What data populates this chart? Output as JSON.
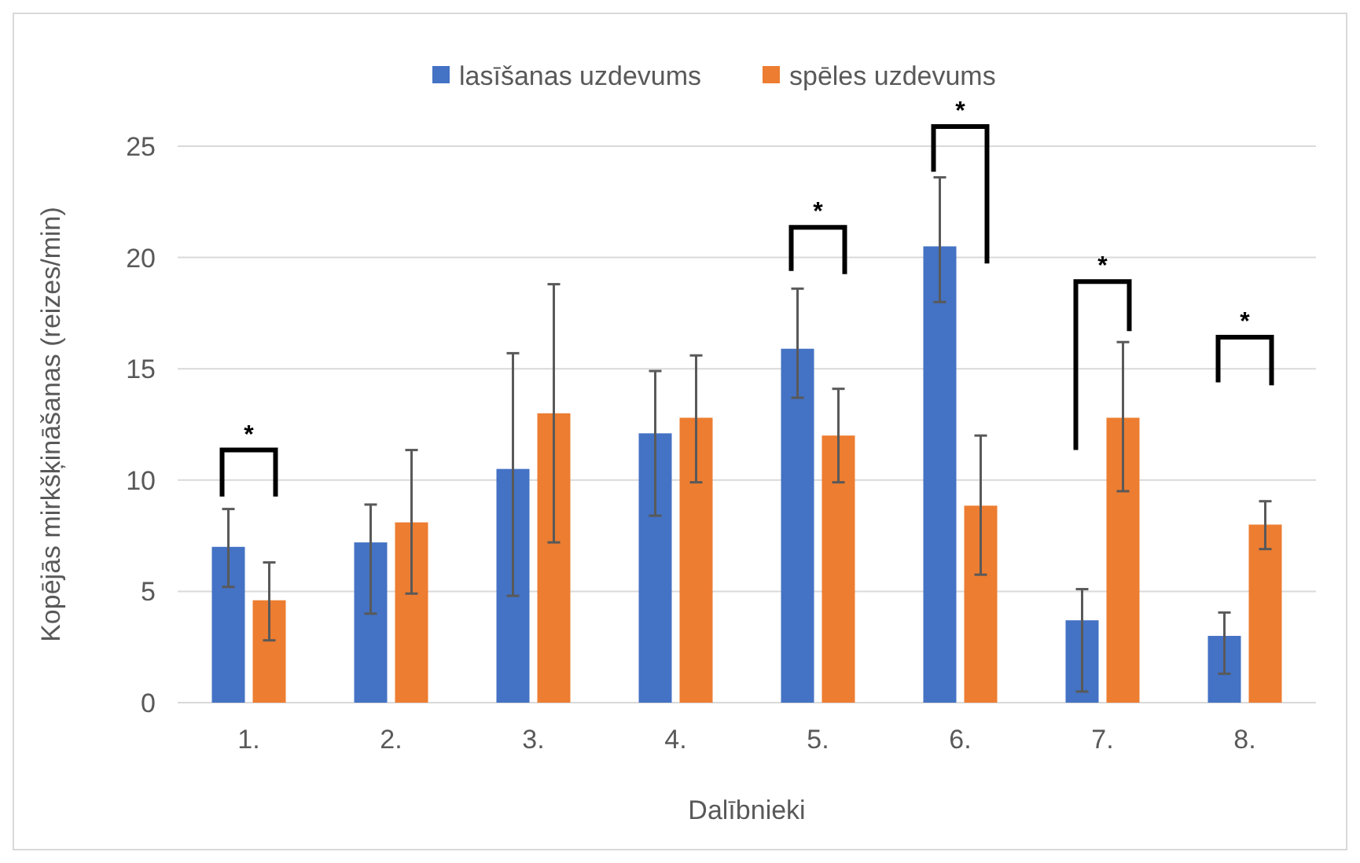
{
  "chart_data": {
    "type": "bar",
    "xlabel": "Dalībnieki",
    "ylabel": "Kopējās mirkšķināšanas (reizes/min)",
    "categories": [
      "1.",
      "2.",
      "3.",
      "4.",
      "5.",
      "6.",
      "7.",
      "8."
    ],
    "series": [
      {
        "name": "lasīšanas uzdevums",
        "color": "#4472c4",
        "values": [
          7.0,
          7.2,
          10.5,
          12.1,
          15.9,
          20.5,
          3.7,
          3.0
        ],
        "errors": [
          [
            5.2,
            8.7
          ],
          [
            4.0,
            8.9
          ],
          [
            4.8,
            15.7
          ],
          [
            8.4,
            14.9
          ],
          [
            13.7,
            18.6
          ],
          [
            18.0,
            23.6
          ],
          [
            0.5,
            5.1
          ],
          [
            1.3,
            4.05
          ]
        ]
      },
      {
        "name": "spēles uzdevums",
        "color": "#ed7d31",
        "values": [
          4.6,
          8.1,
          13.0,
          12.8,
          12.0,
          8.85,
          12.8,
          8.0
        ],
        "errors": [
          [
            2.8,
            6.3
          ],
          [
            4.9,
            11.35
          ],
          [
            7.2,
            18.8
          ],
          [
            9.9,
            15.6
          ],
          [
            9.9,
            14.1
          ],
          [
            5.75,
            12.0
          ],
          [
            9.5,
            16.2
          ],
          [
            6.9,
            9.05
          ]
        ]
      }
    ],
    "ylim": [
      0,
      25
    ],
    "yticks": [
      0,
      5,
      10,
      15,
      20,
      25
    ],
    "grid": "y",
    "legend": "top",
    "annotations": [
      "*",
      "*",
      "*",
      "*",
      "*"
    ]
  }
}
